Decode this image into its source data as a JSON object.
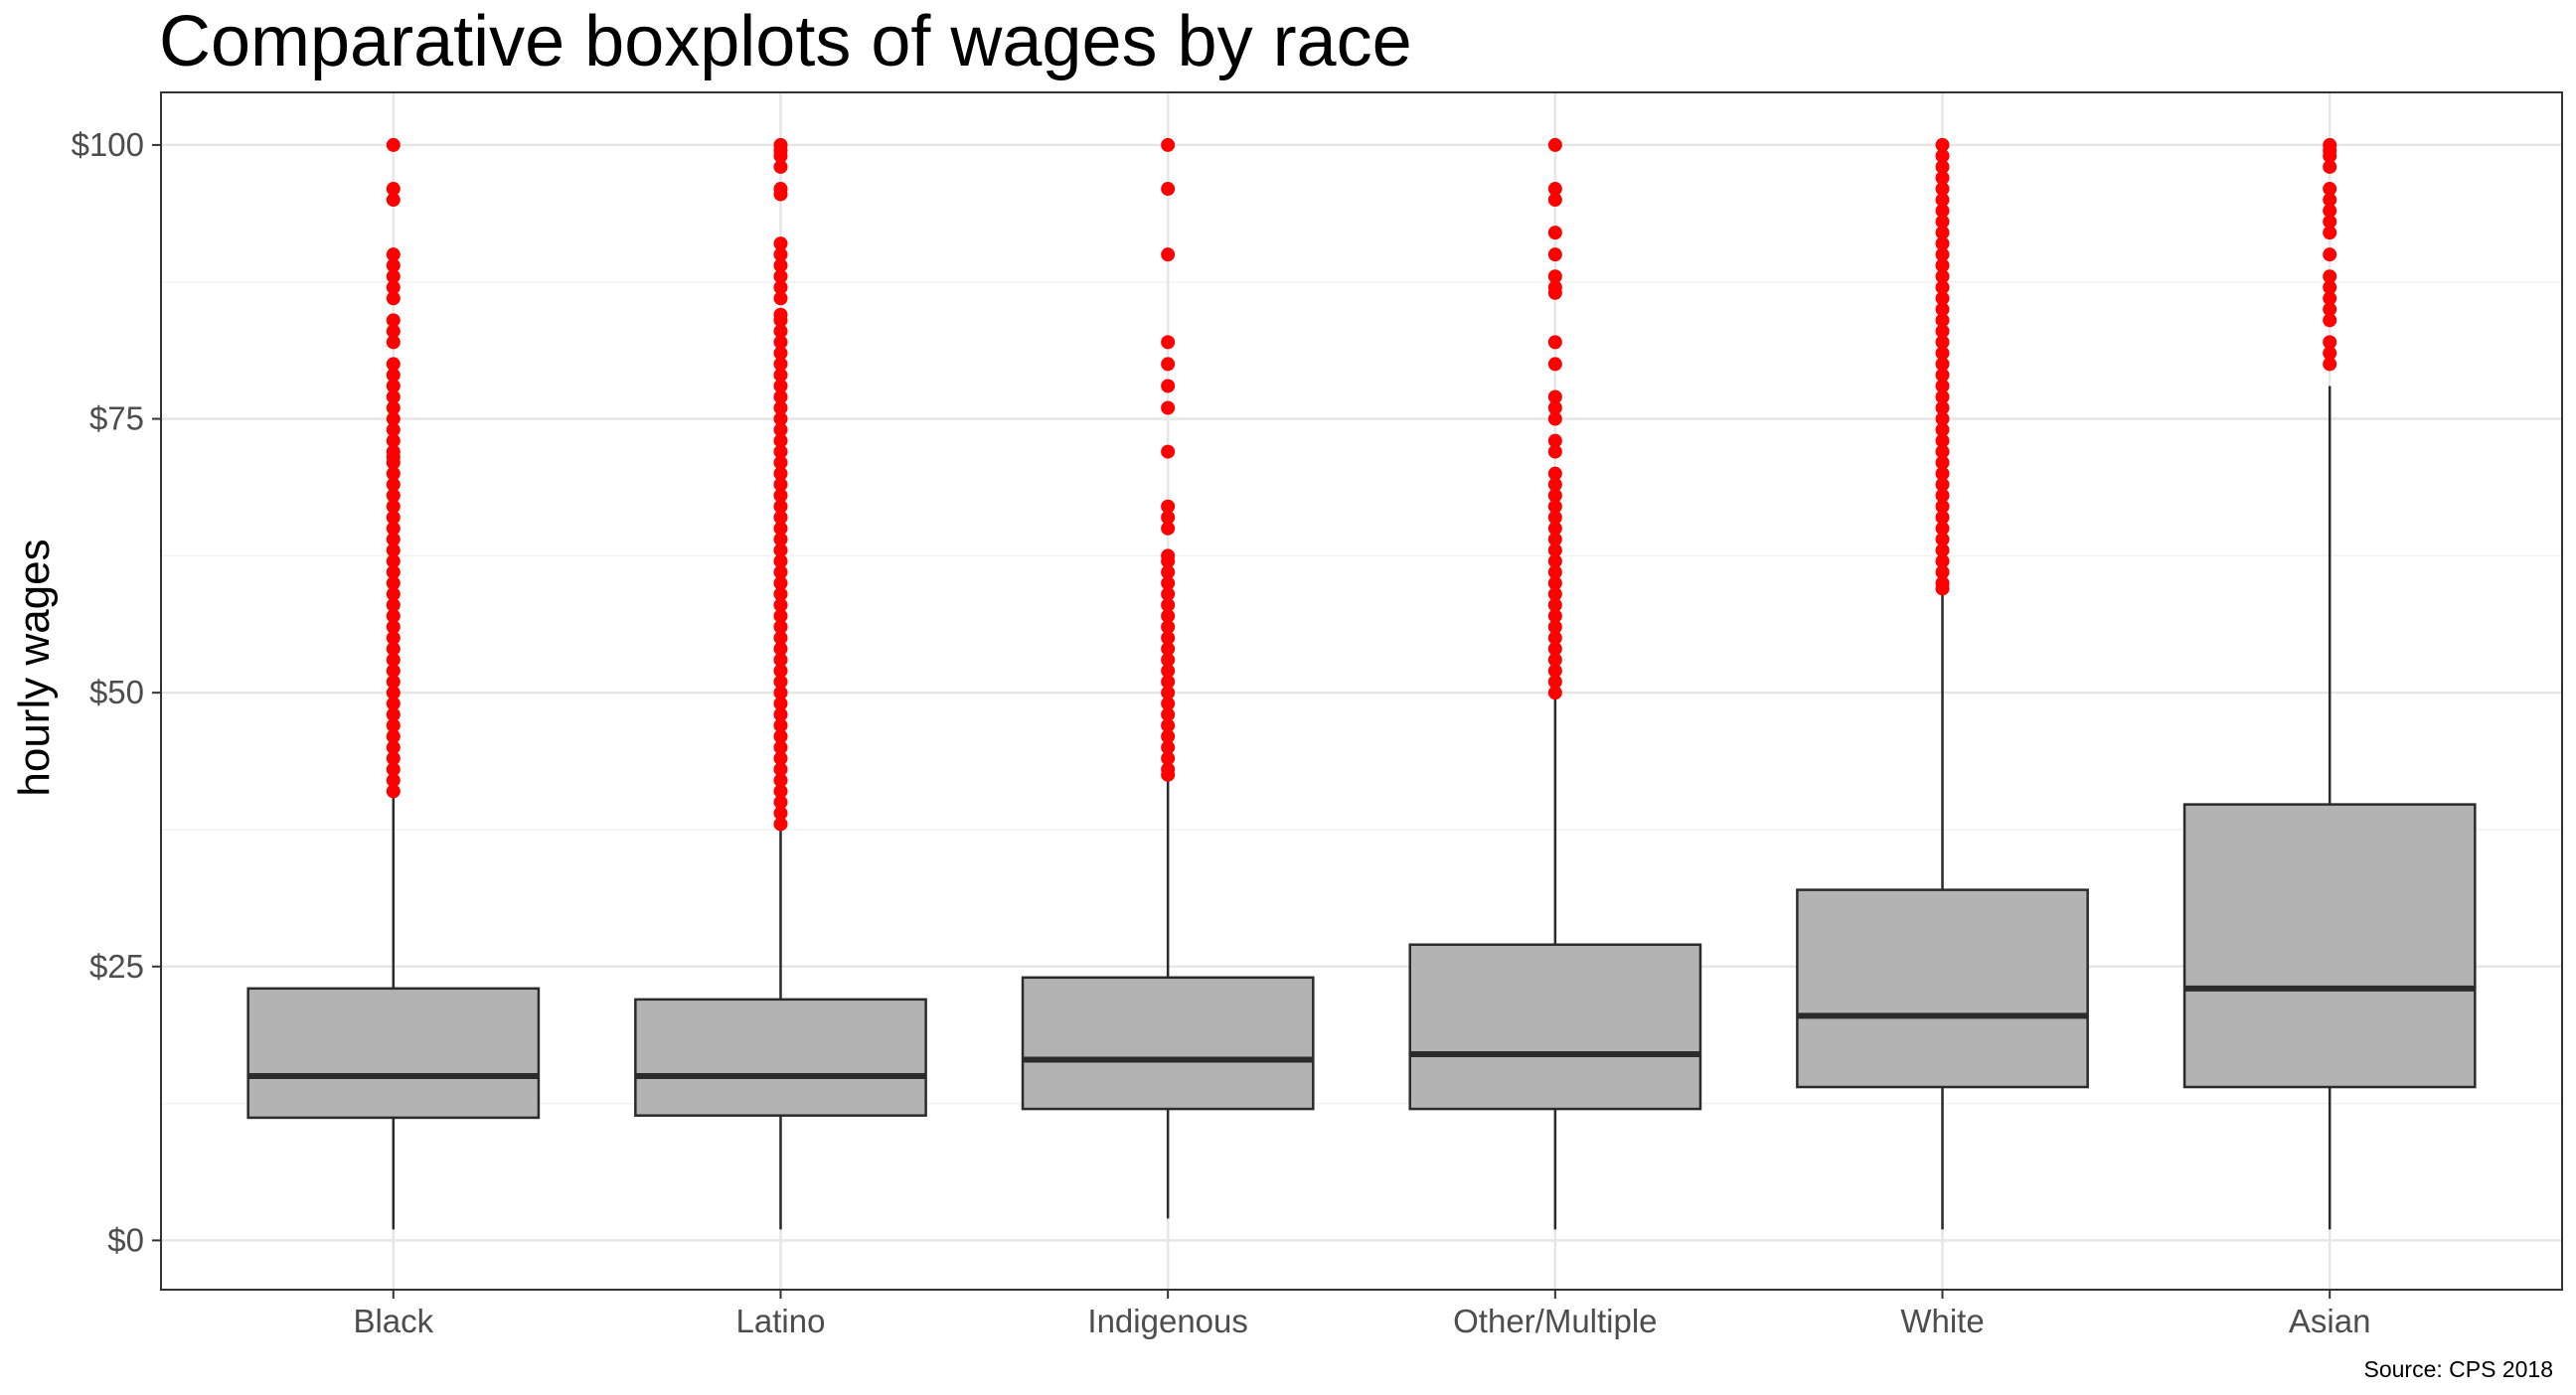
{
  "chart_data": {
    "type": "boxplot",
    "title": "Comparative boxplots of wages by race",
    "ylabel": "hourly wages",
    "xlabel": "",
    "caption": "Source: CPS 2018",
    "ylim": [
      -4.5,
      104.8
    ],
    "y_ticks": [
      0,
      25,
      50,
      75,
      100
    ],
    "y_tick_labels": [
      "$0",
      "$25",
      "$50",
      "$75",
      "$100"
    ],
    "grid": true,
    "colors": {
      "box_fill": "#b3b3b3",
      "box_stroke": "#2b2b2b",
      "median": "#2b2b2b",
      "outlier": "#ff0000",
      "grid": "#e6e6e6",
      "panel_border": "#333333"
    },
    "categories": [
      "Black",
      "Latino",
      "Indigenous",
      "Other/Multiple",
      "White",
      "Asian"
    ],
    "boxes": [
      {
        "category": "Black",
        "min": 1,
        "q1": 11.2,
        "median": 15,
        "q3": 23,
        "max": 40.6,
        "outliers": [
          100,
          96,
          95,
          90,
          89,
          88,
          87,
          86,
          84,
          83,
          82,
          80,
          79,
          78,
          77,
          76,
          75,
          74,
          73,
          72,
          71.5,
          71,
          70,
          69,
          68,
          67,
          66,
          65,
          64,
          63,
          62,
          61,
          60,
          59,
          58,
          57,
          56,
          55,
          54,
          53,
          52,
          51,
          50,
          49,
          48,
          47,
          46,
          45,
          44,
          43,
          42,
          41
        ]
      },
      {
        "category": "Latino",
        "min": 1,
        "q1": 11.4,
        "median": 15,
        "q3": 22,
        "max": 37.6,
        "outliers": [
          100,
          99.5,
          99,
          98,
          96,
          95.5,
          91,
          90,
          89,
          88,
          87,
          86,
          84.5,
          84,
          83,
          82,
          81,
          80,
          79,
          78,
          77,
          76,
          75,
          74,
          73,
          72,
          71,
          70,
          69,
          68,
          67,
          66,
          65,
          64,
          63,
          62,
          61,
          60,
          59,
          58,
          57,
          56,
          55,
          54,
          53,
          52,
          51,
          50,
          49,
          48,
          47,
          46,
          45,
          44,
          43,
          42,
          41,
          40,
          39,
          38
        ]
      },
      {
        "category": "Indigenous",
        "min": 2,
        "q1": 12,
        "median": 16.5,
        "q3": 24,
        "max": 42,
        "outliers": [
          100,
          96,
          90,
          82,
          80,
          78,
          76,
          72,
          67,
          66,
          65,
          62.5,
          62,
          61,
          60,
          59,
          58,
          57,
          56,
          55,
          54,
          53,
          52,
          51,
          50,
          49,
          48,
          47,
          46,
          45,
          44,
          43,
          42.5
        ]
      },
      {
        "category": "Other/Multiple",
        "min": 1,
        "q1": 12,
        "median": 17,
        "q3": 27,
        "max": 49.6,
        "outliers": [
          100,
          96,
          95,
          92,
          90,
          88,
          87,
          86.5,
          82,
          80,
          77,
          76,
          75,
          73,
          72,
          70,
          69,
          68,
          67,
          66,
          65,
          64,
          63,
          62,
          61,
          60,
          59,
          58,
          57,
          56,
          55,
          54,
          53,
          52,
          51,
          50
        ]
      },
      {
        "category": "White",
        "min": 1,
        "q1": 14,
        "median": 20.5,
        "q3": 32,
        "max": 59,
        "outliers": [
          100,
          99,
          98,
          97,
          96,
          95,
          94,
          93,
          92,
          91,
          90,
          89,
          88,
          87,
          86,
          85,
          84,
          83,
          82,
          81,
          80,
          79,
          78,
          77,
          76,
          75,
          74,
          73,
          72,
          71,
          70,
          69,
          68,
          67,
          66,
          65,
          64,
          63,
          62,
          61,
          60,
          59.5
        ]
      },
      {
        "category": "Asian",
        "min": 1,
        "q1": 14,
        "median": 23,
        "q3": 39.8,
        "max": 78,
        "outliers": [
          100,
          99.5,
          99,
          98,
          96,
          95,
          94,
          93,
          92,
          90,
          88,
          87,
          86,
          85,
          84,
          82,
          81,
          80
        ]
      }
    ]
  }
}
